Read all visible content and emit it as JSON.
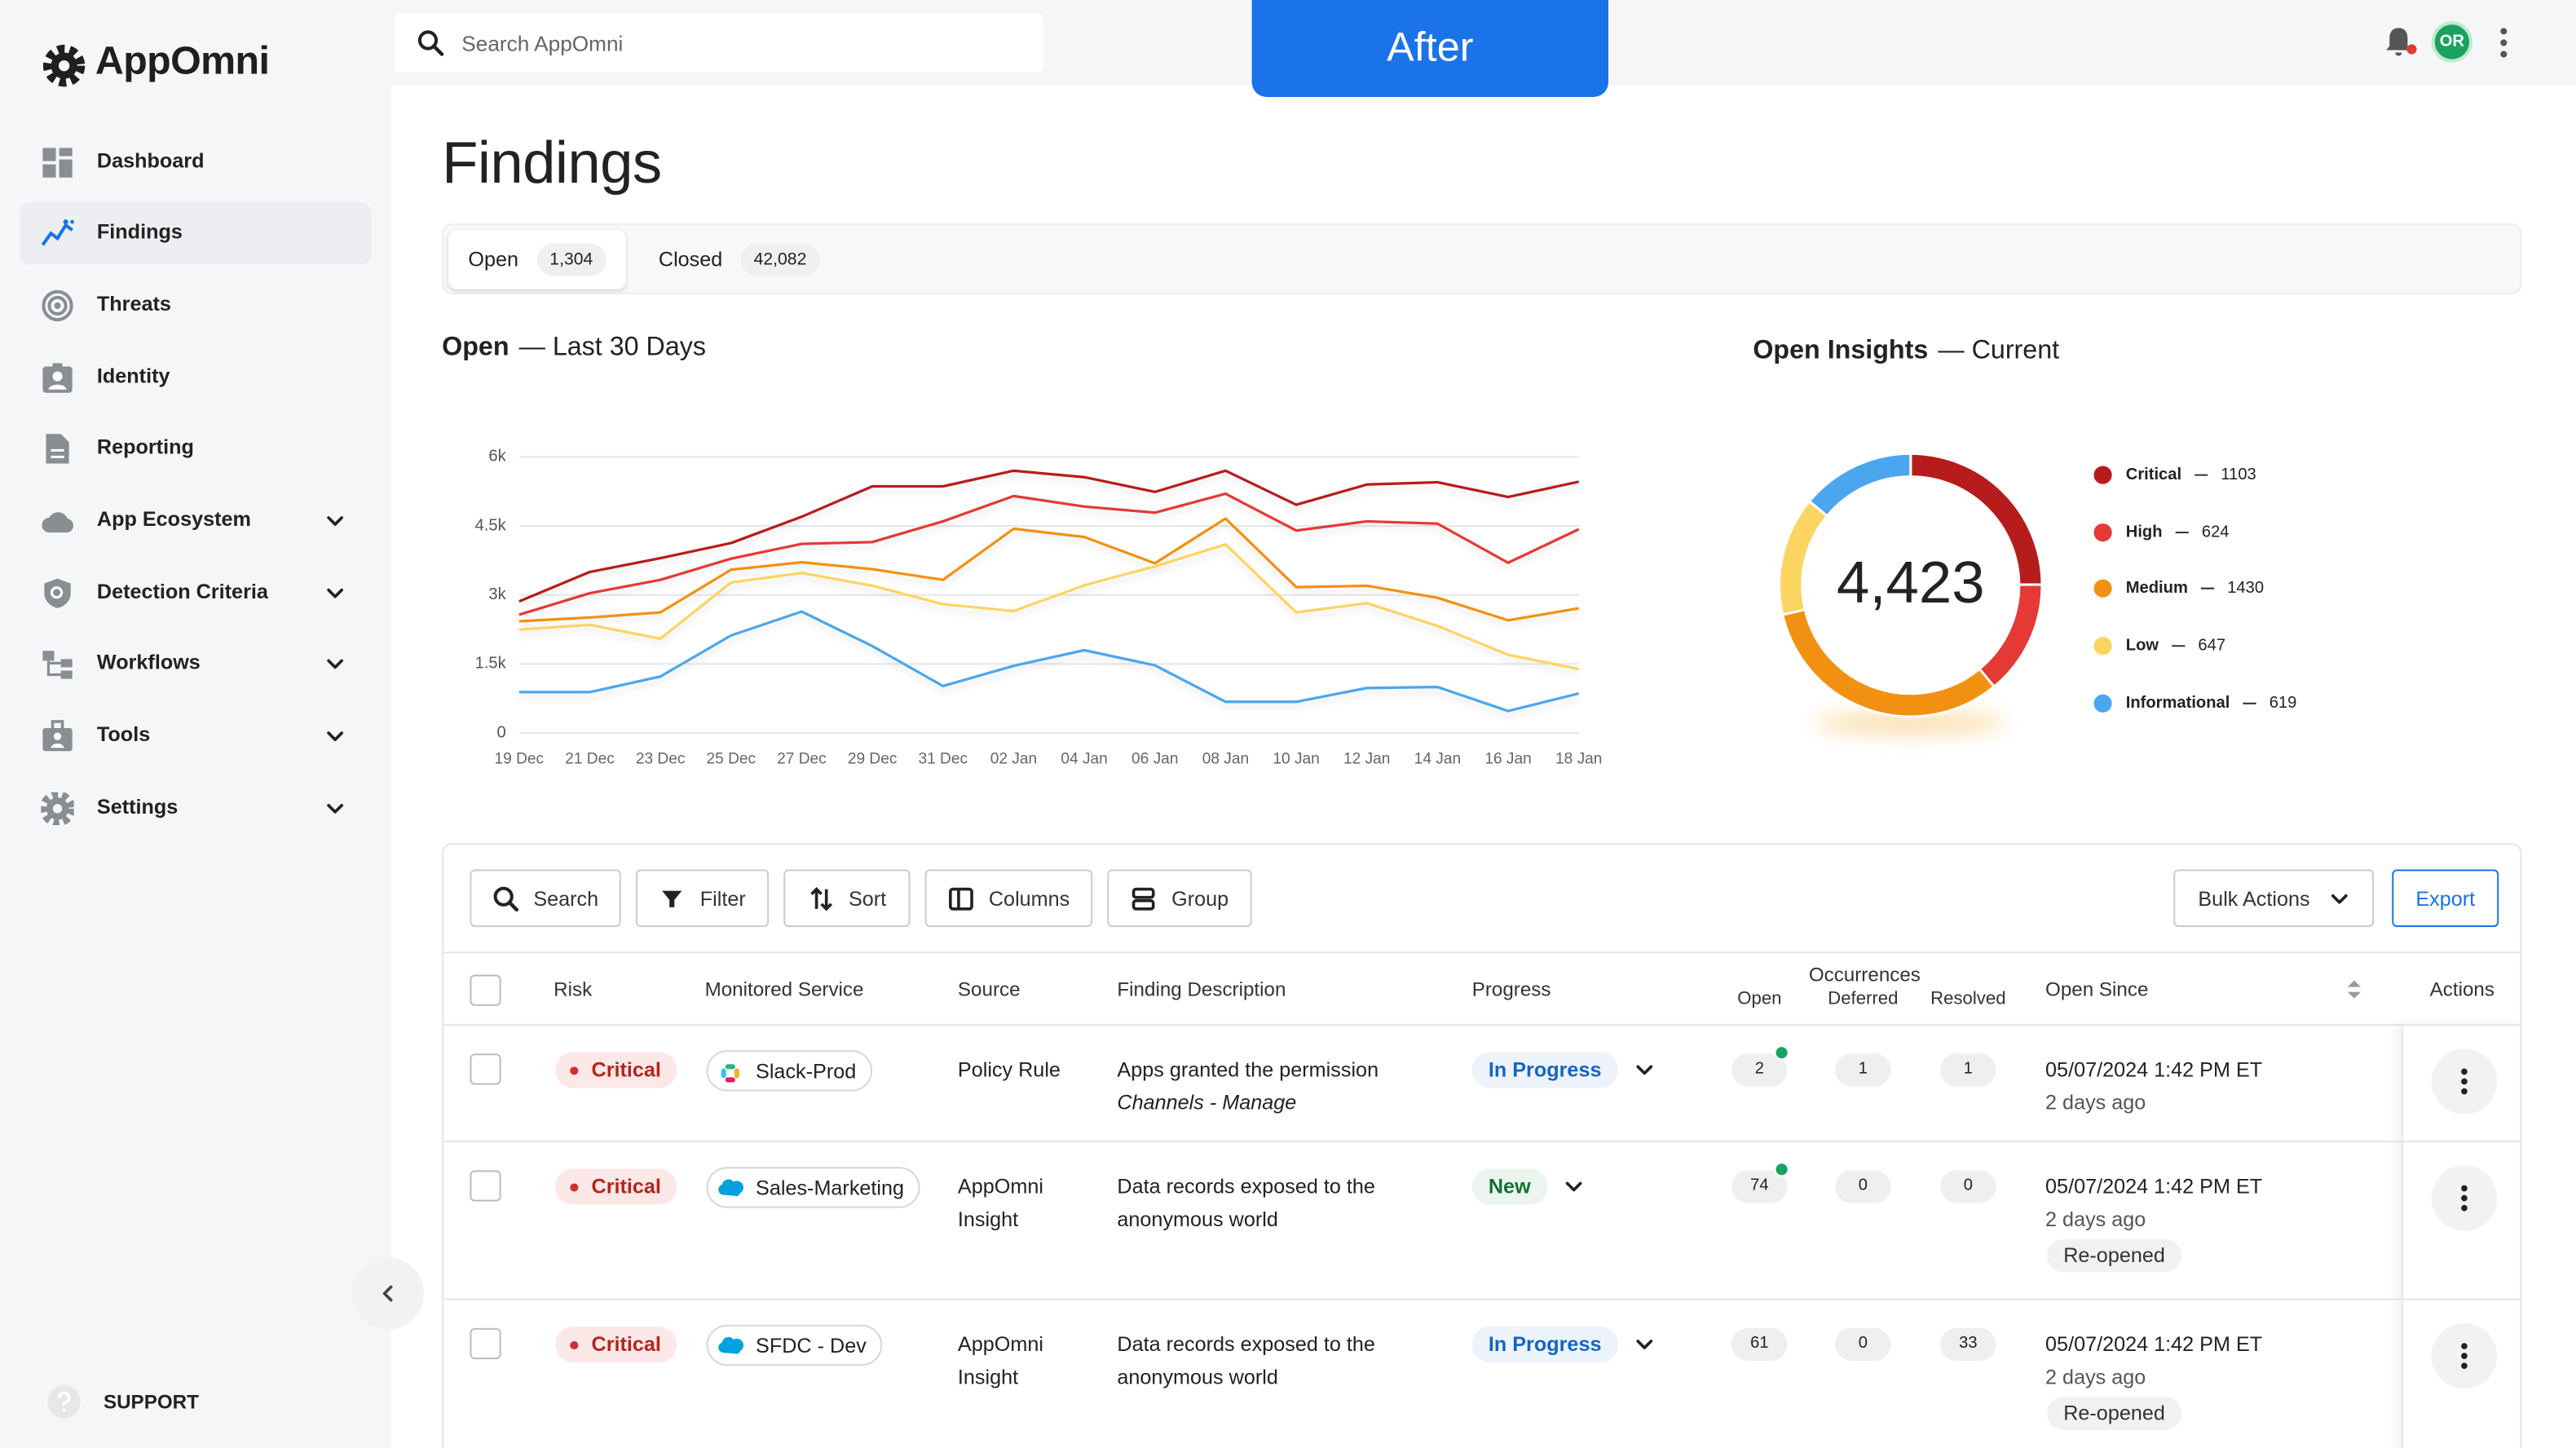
{
  "brand": "AppOmni",
  "search_placeholder": "Search AppOmni",
  "banner": "After",
  "avatar": "OR",
  "nav": [
    {
      "label": "Dashboard"
    },
    {
      "label": "Findings",
      "active": true
    },
    {
      "label": "Threats"
    },
    {
      "label": "Identity"
    },
    {
      "label": "Reporting"
    },
    {
      "label": "App Ecosystem",
      "expandable": true
    },
    {
      "label": "Detection Criteria",
      "expandable": true
    },
    {
      "label": "Workflows",
      "expandable": true
    },
    {
      "label": "Tools",
      "expandable": true
    },
    {
      "label": "Settings",
      "expandable": true
    }
  ],
  "support": "SUPPORT",
  "page_title": "Findings",
  "tabs": [
    {
      "label": "Open",
      "count": "1,304",
      "active": true
    },
    {
      "label": "Closed",
      "count": "42,082"
    }
  ],
  "chart_data": [
    {
      "type": "line",
      "title": "Open",
      "subtitle": "— Last 30 Days",
      "categories": [
        "19 Dec",
        "21 Dec",
        "23 Dec",
        "25 Dec",
        "27 Dec",
        "29 Dec",
        "31 Dec",
        "02 Jan",
        "04 Jan",
        "06 Jan",
        "08 Jan",
        "10 Jan",
        "12 Jan",
        "14 Jan",
        "16 Jan",
        "18 Jan"
      ],
      "series": [
        {
          "color": "#b71c1c",
          "values": [
            2860,
            3500,
            3800,
            4130,
            4700,
            5360,
            5360,
            5700,
            5560,
            5240,
            5700,
            4960,
            5400,
            5450,
            5130,
            5460
          ]
        },
        {
          "color": "#e53935",
          "values": [
            2570,
            3040,
            3330,
            3790,
            4110,
            4150,
            4600,
            5150,
            4920,
            4790,
            5200,
            4400,
            4600,
            4550,
            3700,
            4430
          ]
        },
        {
          "color": "#f29111",
          "values": [
            2430,
            2510,
            2620,
            3550,
            3710,
            3560,
            3330,
            4440,
            4260,
            3690,
            4660,
            3170,
            3200,
            2940,
            2450,
            2710
          ]
        },
        {
          "color": "#fcd462",
          "values": [
            2250,
            2350,
            2050,
            3270,
            3480,
            3200,
            2800,
            2650,
            3210,
            3620,
            4100,
            2620,
            2820,
            2330,
            1700,
            1390
          ]
        },
        {
          "color": "#4ba6f0",
          "values": [
            890,
            890,
            1230,
            2120,
            2640,
            1890,
            1020,
            1460,
            1800,
            1470,
            680,
            680,
            980,
            1000,
            480,
            860
          ]
        }
      ],
      "ylim": [
        0,
        6000
      ],
      "yticks": [
        0,
        {
          "value": 1500,
          "label": "1.5k"
        },
        {
          "value": 3000,
          "label": "3k"
        },
        {
          "value": 4500,
          "label": "4.5k"
        },
        {
          "value": 6000,
          "label": "6k"
        }
      ],
      "grid": true
    },
    {
      "type": "donut",
      "title": "Open Insights",
      "subtitle": "— Current",
      "center_label": "4,423",
      "categories": [
        "Critical",
        "High",
        "Medium",
        "Low",
        "Informational"
      ],
      "values": [
        1103,
        624,
        1430,
        647,
        619
      ],
      "colors": [
        "#b71c1c",
        "#e53935",
        "#f29111",
        "#fcd462",
        "#4ba6f0"
      ],
      "legend": "right"
    }
  ],
  "table": {
    "toolbar": [
      "Search",
      "Filter",
      "Sort",
      "Columns",
      "Group"
    ],
    "bulk_actions": "Bulk Actions",
    "export": "Export",
    "columns": [
      "Risk",
      "Monitored Service",
      "Source",
      "Finding Description",
      "Progress",
      "Occurrences",
      "Open Since",
      "Actions"
    ],
    "occurrence_columns": [
      "Open",
      "Deferred",
      "Resolved"
    ],
    "rows": [
      {
        "risk": "Critical",
        "service": "Slack-Prod",
        "source": "Policy Rule",
        "description": "Apps granted the permission",
        "description_detail": "Channels - Manage",
        "progress": "In Progress",
        "progress_color": "#1565c0",
        "occurrences": [
          2,
          1,
          1
        ],
        "new_activity": true,
        "open_since": "05/07/2024 1:42 PM ET",
        "age": "2 days ago"
      },
      {
        "risk": "Critical",
        "service": "Sales-Marketing",
        "source": "AppOmni Insight",
        "description": "Data records exposed to the anonymous world",
        "progress": "New",
        "progress_color": "#137333",
        "occurrences": [
          74,
          0,
          0
        ],
        "new_activity": true,
        "open_since": "05/07/2024 1:42 PM ET",
        "age": "2 days ago",
        "status": "Re-opened"
      },
      {
        "risk": "Critical",
        "service": "SFDC - Dev",
        "source": "AppOmni Insight",
        "description": "Data records exposed to the anonymous world",
        "progress": "In Progress",
        "progress_color": "#1565c0",
        "occurrences": [
          61,
          0,
          33
        ],
        "new_activity": false,
        "open_since": "05/07/2024 1:42 PM ET",
        "age": "2 days ago",
        "status": "Re-opened"
      }
    ]
  }
}
